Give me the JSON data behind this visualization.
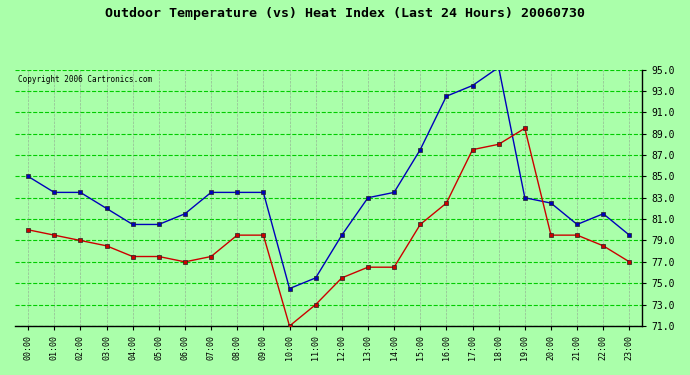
{
  "title": "Outdoor Temperature (vs) Heat Index (Last 24 Hours) 20060730",
  "copyright_text": "Copyright 2006 Cartronics.com",
  "hours": [
    "00:00",
    "01:00",
    "02:00",
    "03:00",
    "04:00",
    "05:00",
    "06:00",
    "07:00",
    "08:00",
    "09:00",
    "10:00",
    "11:00",
    "12:00",
    "13:00",
    "14:00",
    "15:00",
    "16:00",
    "17:00",
    "18:00",
    "19:00",
    "20:00",
    "21:00",
    "22:00",
    "23:00"
  ],
  "blue_temp": [
    85.0,
    83.5,
    83.5,
    82.0,
    80.5,
    80.5,
    81.5,
    83.5,
    83.5,
    83.5,
    74.5,
    75.5,
    79.5,
    83.0,
    83.5,
    87.5,
    92.5,
    93.5,
    95.2,
    83.0,
    82.5,
    80.5,
    81.5,
    79.5
  ],
  "red_heat": [
    80.0,
    79.5,
    79.0,
    78.5,
    77.5,
    77.5,
    77.0,
    77.5,
    79.5,
    79.5,
    71.0,
    73.0,
    75.5,
    76.5,
    76.5,
    80.5,
    82.5,
    87.5,
    88.0,
    89.5,
    79.5,
    79.5,
    78.5,
    77.0
  ],
  "ylim": [
    71.0,
    95.0
  ],
  "yticks": [
    71.0,
    73.0,
    75.0,
    77.0,
    79.0,
    81.0,
    83.0,
    85.0,
    87.0,
    89.0,
    91.0,
    93.0,
    95.0
  ],
  "bg_color": "#aaffaa",
  "plot_bg_color": "#aaffaa",
  "grid_major_color": "#00cc00",
  "grid_minor_color": "#888888",
  "blue_color": "#0000bb",
  "red_color": "#cc0000",
  "title_color": "#000000",
  "border_color": "#000000",
  "fig_width": 6.9,
  "fig_height": 3.75,
  "dpi": 100
}
